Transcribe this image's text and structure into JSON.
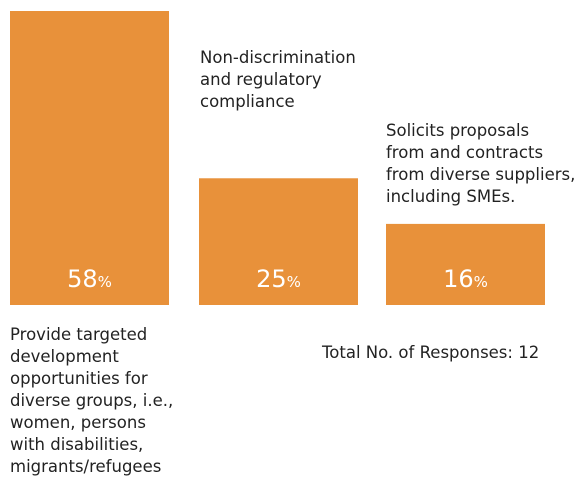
{
  "chart_data": {
    "type": "bar",
    "categories": [
      "Provide targeted development opportunities for diverse groups, i.e., women, persons with disabilities, migrants/refugees",
      "Non-discrimination and regulatory compliance",
      "Solicits proposals from and contracts from diverse suppliers, including SMEs."
    ],
    "values": [
      58,
      25,
      16
    ],
    "value_suffix": "%",
    "bar_color": "#E8913A",
    "legend": "none",
    "grid": false
  },
  "labels": [
    "Provide targeted\ndevelopment\nopportunities for\ndiverse groups, i.e.,\nwomen, persons\nwith disabilities,\nmigrants/refugees",
    "Non-discrimination\nand regulatory\ncompliance",
    "Solicits proposals\nfrom and contracts\nfrom diverse suppliers,\nincluding SMEs."
  ],
  "footnote": "Total No. of Responses: 12"
}
